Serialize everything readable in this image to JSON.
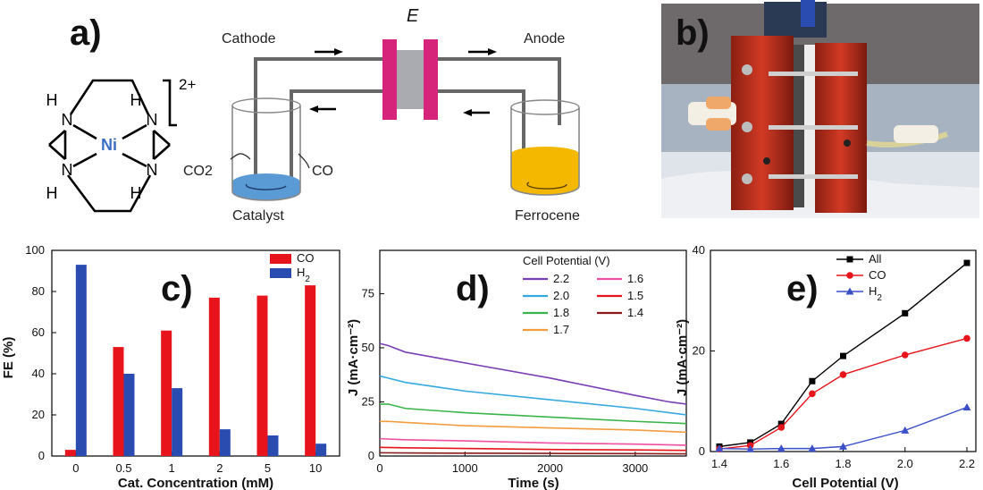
{
  "panel_labels": {
    "a": "a)",
    "b": "b)",
    "c": "c)",
    "d": "d)",
    "e": "e)"
  },
  "molecule": {
    "metal": "Ni",
    "charge": "2+",
    "atoms": [
      "N",
      "N",
      "N",
      "N",
      "H",
      "H",
      "H",
      "H"
    ]
  },
  "cell_schematic": {
    "potential_label": "E",
    "cathode_label": "Cathode",
    "anode_label": "Anode",
    "co2_label": "CO2",
    "co_label": "CO",
    "catalyst_label": "Catalyst",
    "ferrocene_label": "Ferrocene",
    "cathode_fluid_color": "#5b9bd5",
    "anode_fluid_color": "#f5b800",
    "membrane_color": "#d6247a"
  },
  "photo": {
    "frame_color": "#c0311f"
  },
  "chart_data": [
    {
      "panel": "c",
      "type": "bar",
      "categories": [
        "0",
        "0.5",
        "1",
        "2",
        "5",
        "10"
      ],
      "series": [
        {
          "name": "CO",
          "values": [
            3,
            53,
            61,
            77,
            78,
            83
          ],
          "color": "#e8141b"
        },
        {
          "name": "H2",
          "values": [
            93,
            40,
            33,
            13,
            10,
            6
          ],
          "color": "#2a4bb0"
        }
      ],
      "xlabel": "Cat. Concentration (mM)",
      "ylabel": "FE (%)",
      "ylim": [
        0,
        100
      ],
      "yticks": [
        0,
        20,
        40,
        60,
        80,
        100
      ],
      "legend": "top-right"
    },
    {
      "panel": "d",
      "type": "line",
      "xlabel": "Time (s)",
      "ylabel": "J (mA·cm⁻²)",
      "xlim": [
        0,
        3600
      ],
      "ylim": [
        0,
        95
      ],
      "xticks": [
        0,
        1000,
        2000,
        3000
      ],
      "yticks": [
        0,
        25,
        50,
        75
      ],
      "legend_title": "Cell Potential (V)",
      "legend": "top-right",
      "series": [
        {
          "name": "2.2",
          "color": "#7b3fb5",
          "x": [
            0,
            100,
            300,
            1000,
            2000,
            3000,
            3400,
            3600
          ],
          "y": [
            52,
            51,
            48,
            43,
            36,
            28,
            25,
            24
          ]
        },
        {
          "name": "2.0",
          "color": "#35a8e0",
          "x": [
            0,
            100,
            300,
            1000,
            2000,
            3000,
            3600
          ],
          "y": [
            37,
            36,
            34,
            30,
            26,
            22,
            19
          ]
        },
        {
          "name": "1.8",
          "color": "#3ab34a",
          "x": [
            0,
            100,
            300,
            1000,
            2000,
            3000,
            3600
          ],
          "y": [
            24,
            24,
            22,
            20,
            18,
            16,
            15
          ]
        },
        {
          "name": "1.7",
          "color": "#f39c3d",
          "x": [
            0,
            100,
            300,
            1000,
            2000,
            3000,
            3600
          ],
          "y": [
            16,
            16,
            15.5,
            14,
            13,
            12,
            11
          ]
        },
        {
          "name": "1.6",
          "color": "#ef4fa0",
          "x": [
            0,
            300,
            1000,
            2000,
            3000,
            3600
          ],
          "y": [
            8,
            7.5,
            7,
            6,
            5.5,
            5
          ]
        },
        {
          "name": "1.5",
          "color": "#e8141b",
          "x": [
            0,
            300,
            1000,
            2000,
            3000,
            3600
          ],
          "y": [
            4,
            3.8,
            3.5,
            3,
            2.8,
            2.6
          ]
        },
        {
          "name": "1.4",
          "color": "#8b1a1a",
          "x": [
            0,
            300,
            1000,
            2000,
            3000,
            3600
          ],
          "y": [
            1.5,
            1.4,
            1.3,
            1.2,
            1.1,
            1.0
          ]
        }
      ]
    },
    {
      "panel": "e",
      "type": "line",
      "xlabel": "Cell Potential (V)",
      "ylabel": "J (mA·cm⁻²)",
      "xlim": [
        1.4,
        2.2
      ],
      "ylim": [
        0,
        40
      ],
      "xticks": [
        "1.4",
        "1.6",
        "1.8",
        "2.0",
        "2.2"
      ],
      "yticks": [
        0,
        20,
        40
      ],
      "legend": "top-left",
      "series": [
        {
          "name": "All",
          "color": "#000000",
          "marker": "square",
          "x": [
            1.4,
            1.5,
            1.6,
            1.7,
            1.8,
            2.0,
            2.2
          ],
          "y": [
            1.0,
            1.8,
            5.5,
            14,
            19,
            27.5,
            37.5
          ]
        },
        {
          "name": "CO",
          "color": "#e8141b",
          "marker": "circle",
          "x": [
            1.4,
            1.5,
            1.6,
            1.7,
            1.8,
            2.0,
            2.2
          ],
          "y": [
            0.5,
            1.2,
            4.8,
            11.5,
            15.3,
            19.2,
            22.5
          ]
        },
        {
          "name": "H2",
          "color": "#3a4fc8",
          "marker": "triangle",
          "x": [
            1.4,
            1.5,
            1.6,
            1.7,
            1.8,
            2.0,
            2.2
          ],
          "y": [
            0.6,
            0.5,
            0.6,
            0.6,
            1.0,
            4.2,
            8.8
          ]
        }
      ]
    }
  ]
}
